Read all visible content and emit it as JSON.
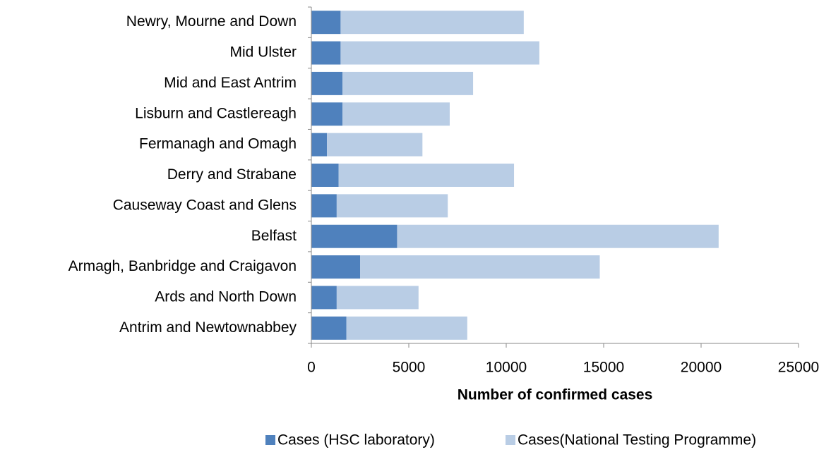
{
  "chart_data": {
    "type": "stacked-barh",
    "categories": [
      "Antrim and Newtownabbey",
      "Ards and North Down",
      "Armagh, Banbridge and Craigavon",
      "Belfast",
      "Causeway Coast and Glens",
      "Derry and Strabane",
      "Fermanagh and Omagh",
      "Lisburn and Castlereagh",
      "Mid and East Antrim",
      "Mid Ulster",
      "Newry, Mourne and Down"
    ],
    "series": [
      {
        "name": "Cases (HSC laboratory)",
        "color": "#4f81bd",
        "values": [
          1800,
          1300,
          2500,
          4400,
          1300,
          1400,
          800,
          1600,
          1600,
          1500,
          1500
        ]
      },
      {
        "name": "Cases(National Testing Programme)",
        "color": "#b9cde5",
        "values": [
          6200,
          4200,
          12300,
          16500,
          5700,
          9000,
          4900,
          5500,
          6700,
          10200,
          9400
        ]
      }
    ],
    "xlabel": "Number of confirmed cases",
    "xlim": [
      0,
      25000
    ],
    "xticks": [
      0,
      5000,
      10000,
      15000,
      20000,
      25000
    ]
  }
}
